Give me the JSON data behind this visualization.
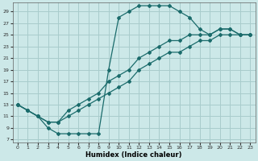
{
  "xlabel": "Humidex (Indice chaleur)",
  "bg_color": "#cce8e8",
  "grid_color": "#a8cccc",
  "line_color": "#1a6b6b",
  "xlim": [
    -0.5,
    23.5
  ],
  "ylim": [
    6.5,
    30.5
  ],
  "xticks": [
    0,
    1,
    2,
    3,
    4,
    5,
    6,
    7,
    8,
    9,
    10,
    11,
    12,
    13,
    14,
    15,
    16,
    17,
    18,
    19,
    20,
    21,
    22,
    23
  ],
  "yticks": [
    7,
    9,
    11,
    13,
    15,
    17,
    19,
    21,
    23,
    25,
    27,
    29
  ],
  "line1": {
    "x": [
      0,
      1,
      2,
      3,
      4,
      5,
      6,
      7,
      8,
      9,
      10,
      11,
      12,
      13,
      14,
      15,
      16,
      17,
      18,
      19,
      20,
      21,
      22,
      23
    ],
    "y": [
      13,
      12,
      11,
      9,
      8,
      8,
      8,
      8,
      8,
      19,
      28,
      29,
      30,
      30,
      30,
      30,
      29,
      28,
      26,
      25,
      26,
      26,
      25,
      25
    ]
  },
  "line2": {
    "x": [
      0,
      1,
      2,
      3,
      4,
      5,
      6,
      7,
      8,
      9,
      10,
      11,
      12,
      13,
      14,
      15,
      16,
      17,
      18,
      19,
      20,
      21,
      22,
      23
    ],
    "y": [
      13,
      12,
      11,
      10,
      10,
      11,
      12,
      13,
      14,
      15,
      16,
      17,
      19,
      20,
      21,
      22,
      22,
      23,
      24,
      24,
      25,
      25,
      25,
      25
    ]
  },
  "line3": {
    "x": [
      0,
      1,
      2,
      3,
      4,
      5,
      6,
      7,
      8,
      9,
      10,
      11,
      12,
      13,
      14,
      15,
      16,
      17,
      18,
      19,
      20,
      21,
      22,
      23
    ],
    "y": [
      13,
      12,
      11,
      10,
      10,
      12,
      13,
      14,
      15,
      17,
      18,
      19,
      21,
      22,
      23,
      24,
      24,
      25,
      25,
      25,
      26,
      26,
      25,
      25
    ]
  }
}
